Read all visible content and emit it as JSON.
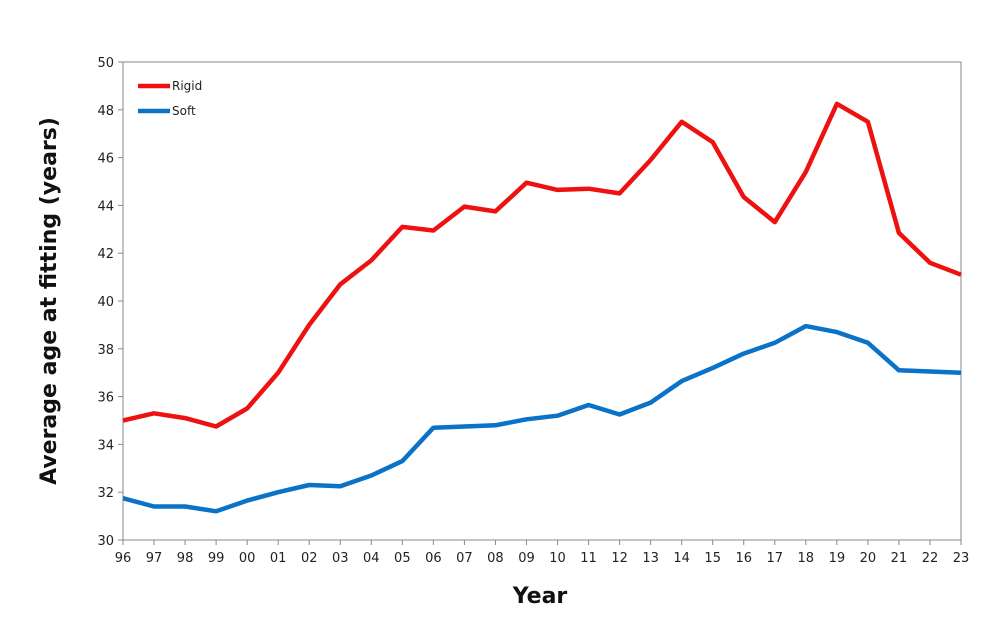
{
  "chart_data": {
    "type": "line",
    "title": "",
    "xlabel": "Year",
    "ylabel": "Average age at fitting (years)",
    "ylim": [
      30,
      50
    ],
    "yticks": [
      30,
      32,
      34,
      36,
      38,
      40,
      42,
      44,
      46,
      48,
      50
    ],
    "categories": [
      "96",
      "97",
      "98",
      "99",
      "00",
      "01",
      "02",
      "03",
      "04",
      "05",
      "06",
      "07",
      "08",
      "09",
      "10",
      "11",
      "12",
      "13",
      "14",
      "15",
      "16",
      "17",
      "18",
      "19",
      "20",
      "21",
      "22",
      "23"
    ],
    "grid": false,
    "legend_position": "top-left",
    "series": [
      {
        "name": "Rigid",
        "color": "#ee1111",
        "values": [
          35.0,
          35.3,
          35.1,
          34.75,
          35.5,
          37.0,
          39.0,
          40.7,
          41.7,
          43.1,
          42.95,
          43.95,
          43.75,
          44.95,
          44.65,
          44.7,
          44.5,
          45.9,
          47.5,
          46.65,
          44.35,
          43.3,
          45.4,
          48.25,
          47.5,
          42.85,
          41.6,
          41.1
        ]
      },
      {
        "name": "Soft",
        "color": "#0a72c7",
        "values": [
          31.75,
          31.4,
          31.4,
          31.2,
          31.65,
          32.0,
          32.3,
          32.25,
          32.7,
          33.3,
          34.7,
          34.75,
          34.8,
          35.05,
          35.2,
          35.65,
          35.25,
          35.75,
          36.65,
          37.2,
          37.8,
          38.25,
          38.95,
          38.7,
          38.25,
          37.1,
          37.05,
          37.0
        ]
      }
    ]
  }
}
